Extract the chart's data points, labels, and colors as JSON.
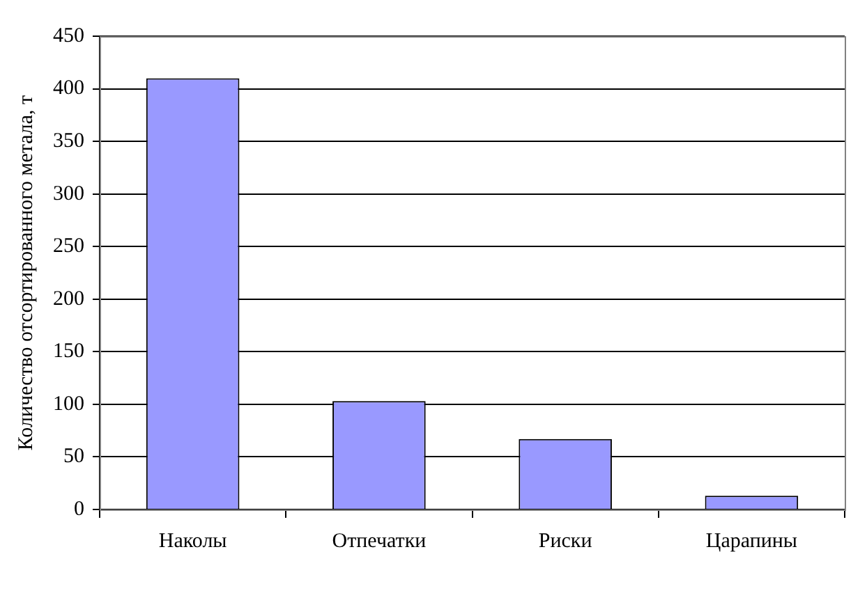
{
  "chart_data": {
    "type": "bar",
    "ylabel": "Количество отсортированного метала, т",
    "categories": [
      "Наколы",
      "Отпечатки",
      "Риски",
      "Царапины"
    ],
    "values": [
      410,
      103,
      67,
      13
    ],
    "color": "#9999ff",
    "ylim": [
      0,
      450
    ],
    "yticks": [
      0,
      50,
      100,
      150,
      200,
      250,
      300,
      350,
      400,
      450
    ],
    "grid": "y"
  }
}
